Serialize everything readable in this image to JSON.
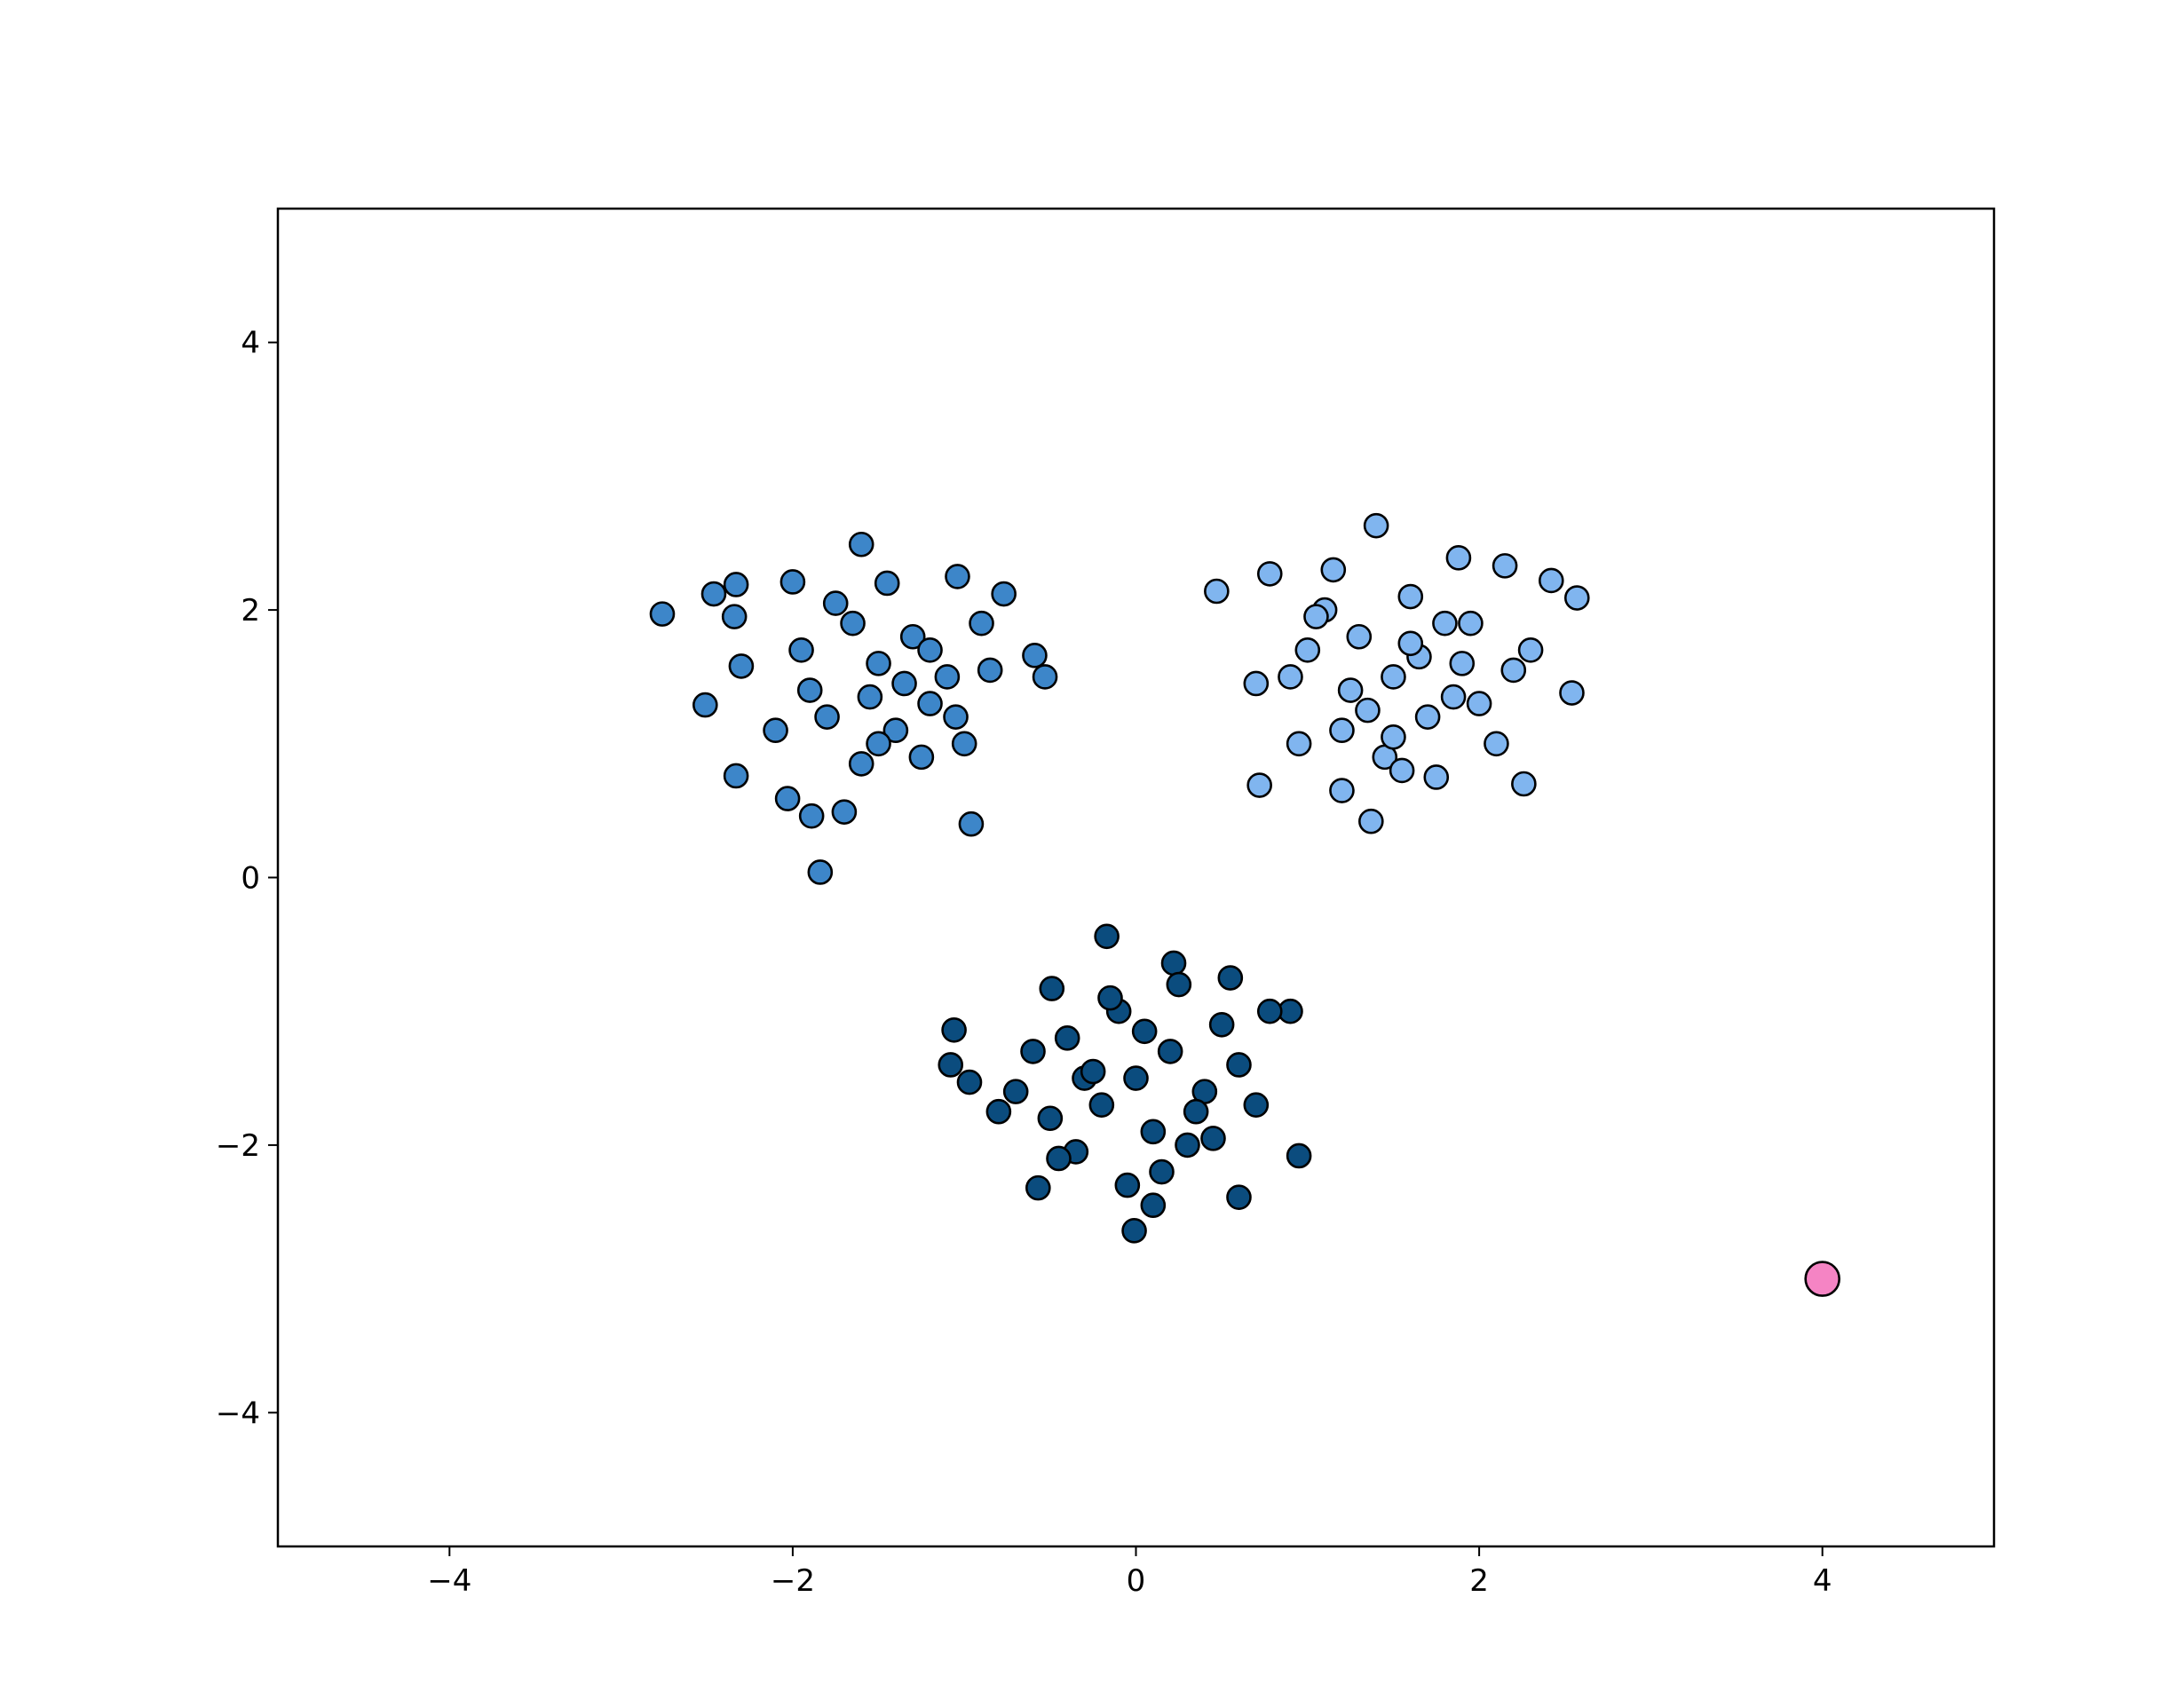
{
  "chart_data": {
    "type": "scatter",
    "xlim": [
      -5,
      5
    ],
    "ylim": [
      -5,
      5
    ],
    "xticks": [
      {
        "value": -4,
        "label": "−4"
      },
      {
        "value": -2,
        "label": "−2"
      },
      0,
      2,
      4
    ],
    "yticks": [
      {
        "value": -4,
        "label": "−4"
      },
      {
        "value": -2,
        "label": "−2"
      },
      0,
      2,
      4
    ],
    "grid": false,
    "series": [
      {
        "color": "#3d86c9",
        "marker_size": 13,
        "x": [
          -2.76,
          -1.6,
          -1.84,
          -0.96,
          -0.53,
          -2.51,
          -2.33,
          -2.03,
          -1.89,
          -1.7,
          -2.46,
          -2.33,
          -2.34,
          -2.0,
          -0.59,
          -0.77,
          -1.04,
          -2.3,
          -1.5,
          -1.3,
          -1.2,
          -1.8,
          -1.65,
          -1.4,
          -1.1,
          -1.95,
          -1.55,
          -1.25,
          -0.85,
          -1.75,
          -1.45,
          -1.0,
          -2.1,
          -1.35,
          -1.6,
          -0.9,
          -1.2,
          -1.9,
          -1.5,
          -1.05
        ],
        "values": [
          1.97,
          2.49,
          0.04,
          0.4,
          1.5,
          1.29,
          0.76,
          0.59,
          0.46,
          0.49,
          2.12,
          2.19,
          1.95,
          2.21,
          1.66,
          2.12,
          2.25,
          1.58,
          1.6,
          1.8,
          1.3,
          1.2,
          1.9,
          1.1,
          1.5,
          1.7,
          1.35,
          0.9,
          1.55,
          2.05,
          2.2,
          1.0,
          1.1,
          1.45,
          0.85,
          1.9,
          1.7,
          1.4,
          1.0,
          1.2
        ]
      },
      {
        "color": "#80b5ef",
        "marker_size": 13,
        "x": [
          1.4,
          0.47,
          2.57,
          2.54,
          1.37,
          0.72,
          2.15,
          2.42,
          2.26,
          0.7,
          0.78,
          1.88,
          1.1,
          1.3,
          1.5,
          1.7,
          1.9,
          2.1,
          1.2,
          1.6,
          1.0,
          1.45,
          1.8,
          2.0,
          1.25,
          1.55,
          1.15,
          1.65,
          1.95,
          0.9,
          1.35,
          1.75,
          2.2,
          1.05,
          1.5,
          1.85,
          1.2,
          1.6,
          0.95,
          2.3
        ],
        "values": [
          2.63,
          2.14,
          2.09,
          1.38,
          0.42,
          0.69,
          2.33,
          2.22,
          0.7,
          1.45,
          2.27,
          2.39,
          2.0,
          1.8,
          1.5,
          1.2,
          1.6,
          1.0,
          1.1,
          2.1,
          1.7,
          0.9,
          1.9,
          1.3,
          1.4,
          0.8,
          2.3,
          1.65,
          1.9,
          1.5,
          1.25,
          0.75,
          1.55,
          1.95,
          1.05,
          1.35,
          0.65,
          1.75,
          1.0,
          1.7
        ]
      },
      {
        "color": "#0b4c7e",
        "marker_size": 13,
        "x": [
          -0.17,
          -0.01,
          0.95,
          0.9,
          -1.06,
          -0.57,
          0.6,
          0.22,
          -0.49,
          -1.08,
          -0.97,
          0.78,
          0.0,
          0.2,
          -0.2,
          0.4,
          -0.4,
          0.1,
          -0.1,
          0.3,
          -0.3,
          0.5,
          -0.5,
          0.6,
          -0.6,
          0.15,
          -0.15,
          0.35,
          -0.35,
          0.05,
          -0.05,
          0.25,
          -0.25,
          0.45,
          -0.7,
          0.7,
          -0.8,
          0.55,
          -0.45,
          0.1
        ],
        "values": [
          -0.44,
          -2.64,
          -2.08,
          -1.0,
          -1.14,
          -2.32,
          -2.39,
          -0.64,
          -0.83,
          -1.4,
          -1.53,
          -1.0,
          -1.5,
          -1.3,
          -1.7,
          -1.6,
          -1.2,
          -1.9,
          -1.0,
          -2.0,
          -1.5,
          -1.1,
          -1.8,
          -1.4,
          -1.3,
          -2.2,
          -0.9,
          -1.75,
          -2.05,
          -1.15,
          -2.3,
          -0.8,
          -1.45,
          -1.95,
          -1.6,
          -1.7,
          -1.75,
          -0.75,
          -2.1,
          -2.45
        ]
      },
      {
        "color": "#f584c4",
        "marker_size": 19,
        "x": [
          4
        ],
        "values": [
          -3
        ]
      }
    ]
  }
}
